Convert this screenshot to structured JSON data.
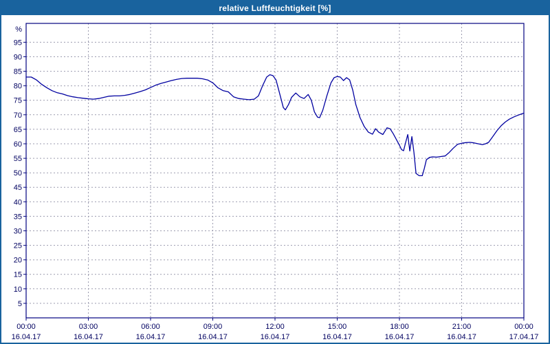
{
  "window": {
    "title": "relative Luftfeuchtigkeit [%]"
  },
  "colors": {
    "titlebar": "#19639e",
    "axis": "#000080",
    "grid": "#9a9aae",
    "line": "#0000a0",
    "tick_text": "#000060",
    "background": "#ffffff"
  },
  "chart_data": {
    "type": "line",
    "title": "relative Luftfeuchtigkeit [%]",
    "ylabel": "%",
    "xlabel": "",
    "grid": true,
    "legend": "none",
    "xlim": [
      0,
      24
    ],
    "ylim": [
      0,
      101.5
    ],
    "y_ticks": [
      5,
      10,
      15,
      20,
      25,
      30,
      35,
      40,
      45,
      50,
      55,
      60,
      65,
      70,
      75,
      80,
      85,
      90,
      95
    ],
    "x_ticks": [
      {
        "hour": 0,
        "time": "00:00",
        "date": "16.04.17"
      },
      {
        "hour": 3,
        "time": "03:00",
        "date": "16.04.17"
      },
      {
        "hour": 6,
        "time": "06:00",
        "date": "16.04.17"
      },
      {
        "hour": 9,
        "time": "09:00",
        "date": "16.04.17"
      },
      {
        "hour": 12,
        "time": "12:00",
        "date": "16.04.17"
      },
      {
        "hour": 15,
        "time": "15:00",
        "date": "16.04.17"
      },
      {
        "hour": 18,
        "time": "18:00",
        "date": "16.04.17"
      },
      {
        "hour": 21,
        "time": "21:00",
        "date": "16.04.17"
      },
      {
        "hour": 24,
        "time": "00:00",
        "date": "17.04.17"
      }
    ],
    "series": [
      {
        "name": "relative Luftfeuchtigkeit",
        "unit": "%",
        "points": [
          [
            0.0,
            83
          ],
          [
            0.25,
            83
          ],
          [
            0.5,
            82
          ],
          [
            0.75,
            80.5
          ],
          [
            1.0,
            79.3
          ],
          [
            1.25,
            78.3
          ],
          [
            1.5,
            77.6
          ],
          [
            1.75,
            77.2
          ],
          [
            2.0,
            76.6
          ],
          [
            2.25,
            76.2
          ],
          [
            2.5,
            75.9
          ],
          [
            2.75,
            75.7
          ],
          [
            3.0,
            75.5
          ],
          [
            3.25,
            75.4
          ],
          [
            3.5,
            75.6
          ],
          [
            3.75,
            76.0
          ],
          [
            4.0,
            76.4
          ],
          [
            4.25,
            76.5
          ],
          [
            4.5,
            76.5
          ],
          [
            4.75,
            76.7
          ],
          [
            5.0,
            77.0
          ],
          [
            5.25,
            77.5
          ],
          [
            5.5,
            78.0
          ],
          [
            5.75,
            78.6
          ],
          [
            6.0,
            79.4
          ],
          [
            6.25,
            80.2
          ],
          [
            6.5,
            80.8
          ],
          [
            6.75,
            81.3
          ],
          [
            7.0,
            81.8
          ],
          [
            7.25,
            82.2
          ],
          [
            7.5,
            82.5
          ],
          [
            7.75,
            82.6
          ],
          [
            8.0,
            82.6
          ],
          [
            8.25,
            82.6
          ],
          [
            8.5,
            82.4
          ],
          [
            8.75,
            82.0
          ],
          [
            9.0,
            81.0
          ],
          [
            9.25,
            79.3
          ],
          [
            9.5,
            78.3
          ],
          [
            9.75,
            77.9
          ],
          [
            10.0,
            76.2
          ],
          [
            10.25,
            75.6
          ],
          [
            10.5,
            75.4
          ],
          [
            10.75,
            75.2
          ],
          [
            11.0,
            75.4
          ],
          [
            11.2,
            76.5
          ],
          [
            11.4,
            80.0
          ],
          [
            11.6,
            83.0
          ],
          [
            11.75,
            83.8
          ],
          [
            11.9,
            83.5
          ],
          [
            12.05,
            82.0
          ],
          [
            12.2,
            78.0
          ],
          [
            12.4,
            72.5
          ],
          [
            12.5,
            71.7
          ],
          [
            12.65,
            73.5
          ],
          [
            12.8,
            76.0
          ],
          [
            13.0,
            77.5
          ],
          [
            13.2,
            76.2
          ],
          [
            13.4,
            75.6
          ],
          [
            13.6,
            77.0
          ],
          [
            13.75,
            75.0
          ],
          [
            13.9,
            71.0
          ],
          [
            14.05,
            69.2
          ],
          [
            14.15,
            69.0
          ],
          [
            14.3,
            71.5
          ],
          [
            14.5,
            76.5
          ],
          [
            14.7,
            81.0
          ],
          [
            14.85,
            82.8
          ],
          [
            15.0,
            83.2
          ],
          [
            15.15,
            83.0
          ],
          [
            15.3,
            81.8
          ],
          [
            15.45,
            82.8
          ],
          [
            15.6,
            82.0
          ],
          [
            15.75,
            78.5
          ],
          [
            15.9,
            73.5
          ],
          [
            16.1,
            69.0
          ],
          [
            16.3,
            66.0
          ],
          [
            16.5,
            64.0
          ],
          [
            16.7,
            63.3
          ],
          [
            16.85,
            65.2
          ],
          [
            17.0,
            64.0
          ],
          [
            17.2,
            63.2
          ],
          [
            17.4,
            65.5
          ],
          [
            17.55,
            65.2
          ],
          [
            17.7,
            63.5
          ],
          [
            17.85,
            61.5
          ],
          [
            18.0,
            59.5
          ],
          [
            18.1,
            58.0
          ],
          [
            18.2,
            57.6
          ],
          [
            18.3,
            60.5
          ],
          [
            18.4,
            63.2
          ],
          [
            18.5,
            57.5
          ],
          [
            18.6,
            62.5
          ],
          [
            18.7,
            57.0
          ],
          [
            18.8,
            49.8
          ],
          [
            18.95,
            49.0
          ],
          [
            19.1,
            49.0
          ],
          [
            19.2,
            51.5
          ],
          [
            19.3,
            54.5
          ],
          [
            19.45,
            55.3
          ],
          [
            19.6,
            55.5
          ],
          [
            19.8,
            55.4
          ],
          [
            20.0,
            55.6
          ],
          [
            20.2,
            55.8
          ],
          [
            20.4,
            57.0
          ],
          [
            20.6,
            58.5
          ],
          [
            20.8,
            59.8
          ],
          [
            21.0,
            60.2
          ],
          [
            21.2,
            60.4
          ],
          [
            21.4,
            60.5
          ],
          [
            21.6,
            60.3
          ],
          [
            21.8,
            60.0
          ],
          [
            22.0,
            59.7
          ],
          [
            22.15,
            60.0
          ],
          [
            22.3,
            60.5
          ],
          [
            22.5,
            62.5
          ],
          [
            22.7,
            64.5
          ],
          [
            22.9,
            66.2
          ],
          [
            23.1,
            67.5
          ],
          [
            23.3,
            68.5
          ],
          [
            23.5,
            69.2
          ],
          [
            23.7,
            69.8
          ],
          [
            23.85,
            70.2
          ],
          [
            24.0,
            70.6
          ]
        ]
      }
    ]
  }
}
